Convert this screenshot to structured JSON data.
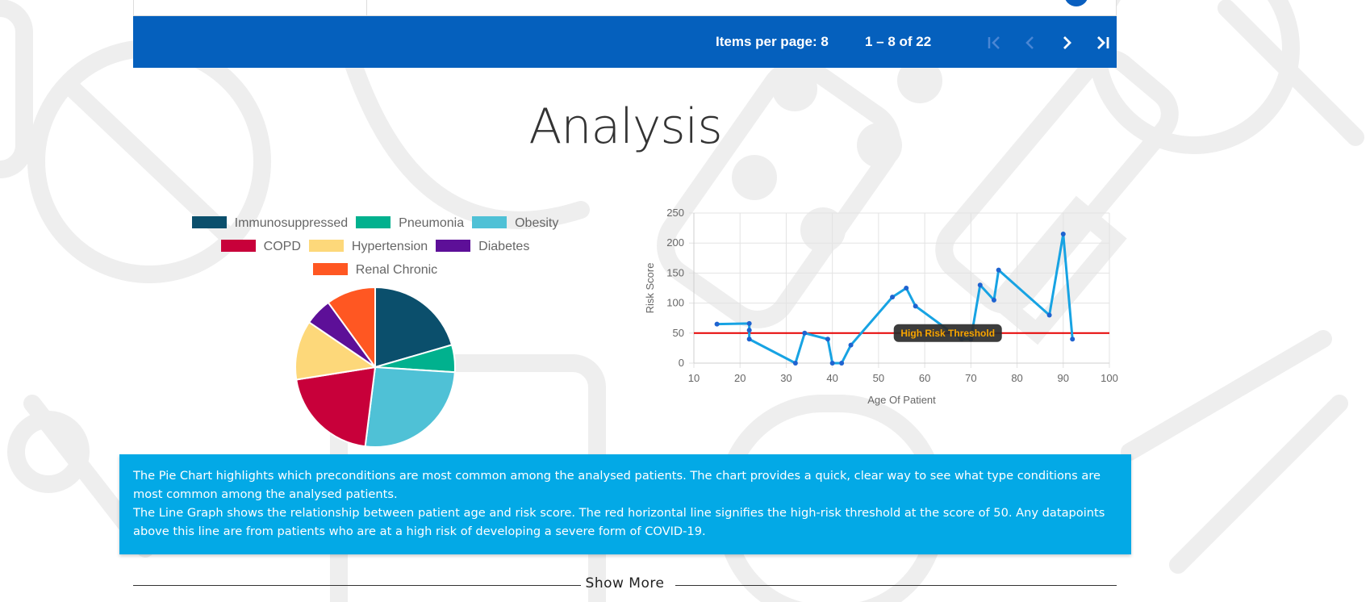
{
  "pager": {
    "items_per_page": "Items per page: 8",
    "range": "1 – 8 of 22",
    "first_icon": "first-page-icon",
    "prev_icon": "chevron-left-icon",
    "next_icon": "chevron-right-icon",
    "last_icon": "last-page-icon"
  },
  "analysis": {
    "title": "Analysis"
  },
  "charts": [
    {
      "type": "pie",
      "legend_rows": [
        [
          {
            "label": "Immunosuppressed",
            "color": "#0b4f6c"
          },
          {
            "label": "Pneumonia",
            "color": "#01b18e"
          },
          {
            "label": "Obesity",
            "color": "#4fc1d6"
          }
        ],
        [
          {
            "label": "COPD",
            "color": "#c8003a"
          },
          {
            "label": "Hypertension",
            "color": "#fdd87a"
          },
          {
            "label": "Diabetes",
            "color": "#5d0f98"
          }
        ],
        [
          {
            "label": "Renal Chronic",
            "color": "#ff5722"
          }
        ]
      ],
      "slices": [
        {
          "name": "Immunosuppressed",
          "value": 20.5,
          "color": "#0b4f6c"
        },
        {
          "name": "Pneumonia",
          "value": 5.5,
          "color": "#01b18e"
        },
        {
          "name": "Obesity",
          "value": 26,
          "color": "#4fc1d6"
        },
        {
          "name": "COPD",
          "value": 20.5,
          "color": "#c8003a"
        },
        {
          "name": "Hypertension",
          "value": 12,
          "color": "#fdd87a"
        },
        {
          "name": "Diabetes",
          "value": 5.5,
          "color": "#5d0f98"
        },
        {
          "name": "Renal Chronic",
          "value": 10,
          "color": "#ff5722"
        }
      ]
    },
    {
      "type": "line",
      "xlabel": "Age Of Patient",
      "ylabel": "Risk Score",
      "xlim": [
        10,
        100
      ],
      "ylim": [
        0,
        250
      ],
      "xticks": [
        10,
        20,
        30,
        40,
        50,
        60,
        70,
        80,
        90,
        100
      ],
      "yticks": [
        0,
        50,
        100,
        150,
        200,
        250
      ],
      "grid": true,
      "series_color": "#17a3e3",
      "points": [
        [
          15,
          65
        ],
        [
          22,
          66
        ],
        [
          22,
          55
        ],
        [
          22,
          40
        ],
        [
          32,
          0
        ],
        [
          34,
          50
        ],
        [
          39,
          40
        ],
        [
          40,
          0
        ],
        [
          42,
          0
        ],
        [
          44,
          30
        ],
        [
          53,
          110
        ],
        [
          56,
          125
        ],
        [
          58,
          95
        ],
        [
          66,
          50
        ],
        [
          68,
          40
        ],
        [
          70,
          40
        ],
        [
          72,
          130
        ],
        [
          75,
          105
        ],
        [
          76,
          155
        ],
        [
          87,
          80
        ],
        [
          90,
          215
        ],
        [
          92,
          40
        ]
      ],
      "threshold": {
        "value": 50,
        "color": "#e60000",
        "label": "High Risk Threshold",
        "label_x": 65
      }
    }
  ],
  "info": {
    "pie_text": "The Pie Chart highlights which preconditions are most common among the analysed patients. The chart provides a quick, clear way to see what type conditions are most common among the analysed patients.",
    "line_text": "The Line Graph shows the relationship between patient age and risk score. The red horizontal line signifies the high-risk threshold at the score of 50. Any datapoints above this line are from patients who are at a high risk of developing a severe form of COVID-19."
  },
  "show_more": {
    "label": "Show More"
  }
}
